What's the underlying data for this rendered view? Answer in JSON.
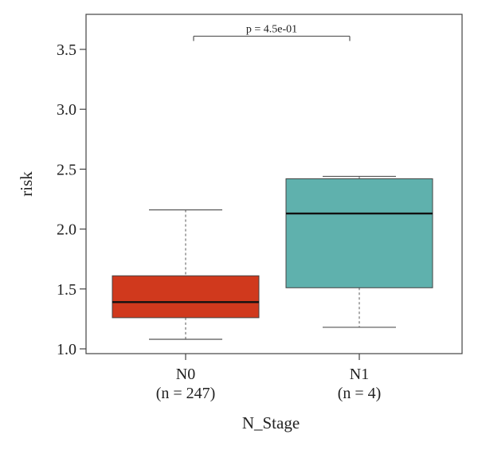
{
  "chart_data": {
    "type": "boxplot",
    "xlabel": "N_Stage",
    "ylabel": "risk",
    "ylim": [
      1.0,
      3.75
    ],
    "yticks": [
      1.0,
      1.5,
      2.0,
      2.5,
      3.0,
      3.5
    ],
    "ytick_labels": [
      "1.0",
      "1.5",
      "2.0",
      "2.5",
      "3.0",
      "3.5"
    ],
    "grid": false,
    "groups": [
      {
        "name": "N0",
        "n_label": "(n = 247)",
        "color": "#d0391d",
        "whisker_low": 1.08,
        "q1": 1.26,
        "median": 1.39,
        "q3": 1.61,
        "whisker_high": 2.16
      },
      {
        "name": "N1",
        "n_label": "(n = 4)",
        "color": "#5fb1ad",
        "whisker_low": 1.18,
        "q1": 1.51,
        "median": 2.13,
        "q3": 2.42,
        "whisker_high": 2.44
      }
    ],
    "annotation": {
      "text": "p = 4.5e-01",
      "y": 3.61
    }
  }
}
